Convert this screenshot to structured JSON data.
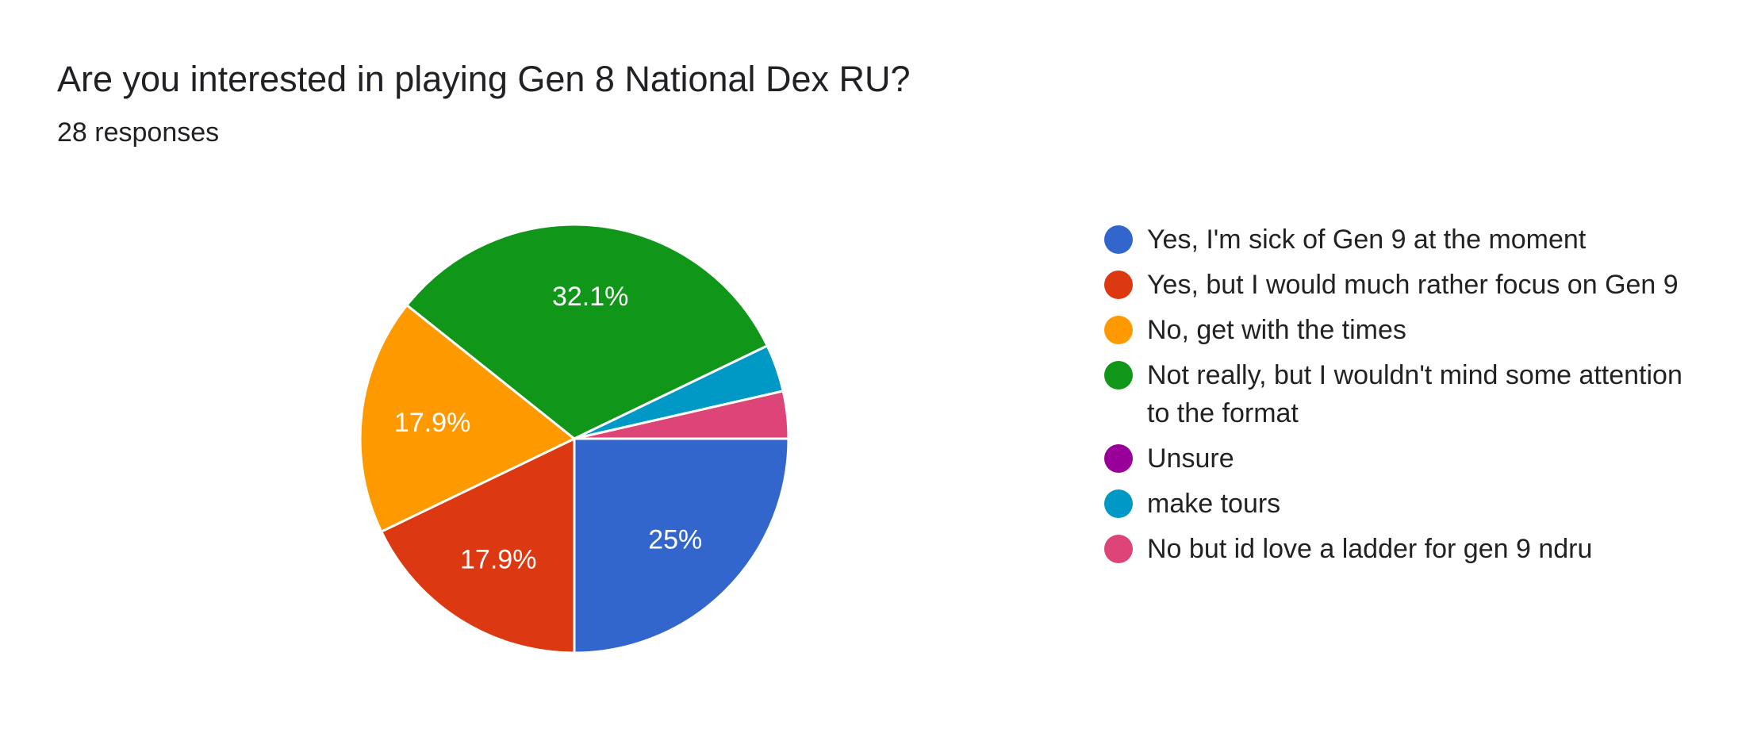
{
  "title": "Are you interested in playing Gen 8 National Dex RU?",
  "subtitle": "28 responses",
  "chart_data": {
    "type": "pie",
    "title": "Are you interested in playing Gen 8 National Dex RU?",
    "total_responses": 28,
    "start_angle_deg": 90,
    "direction": "clockwise",
    "legend_position": "right",
    "slices": [
      {
        "label": "Yes, I'm sick of Gen 9 at the moment",
        "count": 7,
        "percent": 25,
        "display": "25%",
        "color": "#3366cc"
      },
      {
        "label": "Yes, but I would much rather focus on Gen 9",
        "count": 5,
        "percent": 17.9,
        "display": "17.9%",
        "color": "#dc3912"
      },
      {
        "label": "No, get with the times",
        "count": 5,
        "percent": 17.9,
        "display": "17.9%",
        "color": "#ff9900"
      },
      {
        "label": "Not really, but I wouldn't mind some attention to the format",
        "count": 9,
        "percent": 32.1,
        "display": "32.1%",
        "color": "#109618"
      },
      {
        "label": "Unsure",
        "count": 0,
        "percent": 0,
        "display": "",
        "color": "#990099"
      },
      {
        "label": "make tours",
        "count": 1,
        "percent": 3.6,
        "display": "",
        "color": "#0099c6"
      },
      {
        "label": "No but id love a ladder for gen 9 ndru",
        "count": 1,
        "percent": 3.6,
        "display": "",
        "color": "#dd4477"
      }
    ]
  }
}
